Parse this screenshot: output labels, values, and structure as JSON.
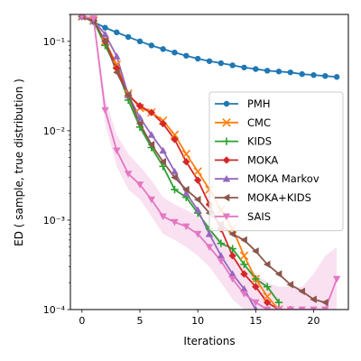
{
  "chart_data": {
    "type": "line",
    "title": "",
    "xlabel": "Iterations",
    "ylabel": "ED ( sample, true distribution )",
    "yscale": "log",
    "xlim": [
      -1,
      23
    ],
    "ylim": [
      0.0001,
      0.2
    ],
    "xticks": [
      0,
      5,
      10,
      15,
      20
    ],
    "xtick_labels": [
      "0",
      "5",
      "10",
      "15",
      "20"
    ],
    "yticks": [
      0.0001,
      0.001,
      0.01,
      0.1
    ],
    "ytick_labels": [
      "10⁻⁴",
      "10⁻³",
      "10⁻²",
      "10⁻¹"
    ],
    "grid": false,
    "legend_position": "center-right",
    "series": [
      {
        "name": "PMH",
        "color": "#1f77b4",
        "marker": "circle",
        "x": [
          0,
          1,
          2,
          3,
          4,
          5,
          6,
          7,
          8,
          9,
          10,
          11,
          12,
          13,
          14,
          15,
          16,
          17,
          18,
          19,
          20,
          21,
          22
        ],
        "y": [
          0.19,
          0.165,
          0.142,
          0.126,
          0.112,
          0.1,
          0.09,
          0.082,
          0.075,
          0.069,
          0.064,
          0.06,
          0.057,
          0.054,
          0.051,
          0.049,
          0.047,
          0.046,
          0.045,
          0.043,
          0.042,
          0.041,
          0.04
        ]
      },
      {
        "name": "CMC",
        "color": "#ff7f0e",
        "marker": "x",
        "x": [
          0,
          1,
          2,
          3,
          4,
          5,
          6,
          7,
          8,
          9,
          10,
          11,
          12,
          13,
          14,
          15,
          16,
          17
        ],
        "y": [
          0.19,
          0.17,
          0.1,
          0.055,
          0.026,
          0.018,
          0.016,
          0.013,
          0.009,
          0.0055,
          0.0035,
          0.0022,
          0.0013,
          0.0008,
          0.0004,
          0.00022,
          0.00014,
          0.0001
        ]
      },
      {
        "name": "KIDS",
        "color": "#2ca02c",
        "marker": "plus",
        "x": [
          0,
          1,
          2,
          3,
          4,
          5,
          6,
          7,
          8,
          9,
          10,
          11,
          12,
          13,
          14,
          15,
          16,
          17
        ],
        "y": [
          0.19,
          0.17,
          0.09,
          0.05,
          0.022,
          0.011,
          0.0065,
          0.004,
          0.0022,
          0.0018,
          0.0012,
          0.0008,
          0.00055,
          0.00048,
          0.00032,
          0.00022,
          0.00018,
          0.00012
        ]
      },
      {
        "name": "MOKA",
        "color": "#d62728",
        "marker": "diamond",
        "x": [
          0,
          1,
          2,
          3,
          4,
          5,
          6,
          7,
          8,
          9,
          10,
          11,
          12,
          13,
          14,
          15,
          16,
          17,
          18
        ],
        "y": [
          0.19,
          0.17,
          0.1,
          0.05,
          0.025,
          0.019,
          0.016,
          0.012,
          0.008,
          0.0045,
          0.0028,
          0.0015,
          0.0008,
          0.0004,
          0.00025,
          0.00018,
          0.00012,
          0.0001,
          0.0001
        ]
      },
      {
        "name": "MOKA Markov",
        "color": "#9467bd",
        "marker": "triangle-up",
        "x": [
          0,
          1,
          2,
          3,
          4,
          5,
          6,
          7,
          8,
          9,
          10,
          11,
          12,
          13,
          14,
          15
        ],
        "y": [
          0.19,
          0.17,
          0.12,
          0.068,
          0.025,
          0.014,
          0.009,
          0.006,
          0.0035,
          0.002,
          0.0013,
          0.0007,
          0.0004,
          0.00025,
          0.00017,
          0.0001
        ]
      },
      {
        "name": "MOKA+KIDS",
        "color": "#8c564b",
        "marker": "triangle-left",
        "x": [
          0,
          1,
          2,
          3,
          4,
          5,
          6,
          7,
          8,
          9,
          10,
          11,
          12,
          13,
          14,
          15,
          16,
          17,
          18,
          19,
          20,
          21
        ],
        "y": [
          0.19,
          0.17,
          0.1,
          0.045,
          0.025,
          0.012,
          0.007,
          0.0045,
          0.003,
          0.0022,
          0.0017,
          0.0012,
          0.0009,
          0.0007,
          0.0006,
          0.00045,
          0.00032,
          0.00025,
          0.00019,
          0.00016,
          0.00013,
          0.00012
        ]
      },
      {
        "name": "SAIS",
        "color": "#e377c2",
        "marker": "triangle-down",
        "x": [
          0,
          1,
          2,
          3,
          4,
          5,
          6,
          7,
          8,
          9,
          10,
          11,
          12,
          13,
          14,
          15,
          16,
          17,
          18,
          19,
          20,
          21,
          22
        ],
        "y": [
          0.19,
          0.18,
          0.017,
          0.006,
          0.0033,
          0.0025,
          0.0017,
          0.0011,
          0.00095,
          0.00085,
          0.0007,
          0.0005,
          0.00035,
          0.00022,
          0.00015,
          0.00012,
          0.0001,
          0.0001,
          0.0001,
          0.0001,
          0.0001,
          0.0001,
          0.00022
        ],
        "band_low": [
          0.18,
          0.16,
          0.012,
          0.004,
          0.0022,
          0.0017,
          0.0011,
          0.0007,
          0.0006,
          0.0005,
          0.0004,
          0.0003,
          0.0002,
          0.00013,
          0.0001,
          0.0001,
          0.0001,
          0.0001,
          0.0001,
          0.0001,
          0.0001,
          0.0001,
          0.0001
        ],
        "band_high": [
          0.2,
          0.19,
          0.023,
          0.009,
          0.0055,
          0.004,
          0.0028,
          0.0018,
          0.0015,
          0.0013,
          0.0011,
          0.0008,
          0.0006,
          0.0004,
          0.0003,
          0.00025,
          0.0002,
          0.00018,
          0.00018,
          0.00018,
          0.00025,
          0.0004,
          0.0005
        ]
      }
    ]
  }
}
